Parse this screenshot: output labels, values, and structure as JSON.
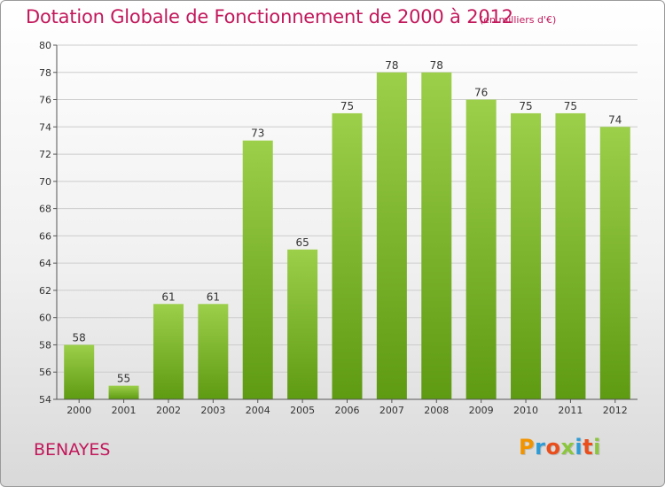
{
  "header": {
    "title": "Dotation Globale de Fonctionnement de 2000 à 2012",
    "unit": "(en milliers d'€)"
  },
  "footer": {
    "city": "BENAYES",
    "logo": {
      "text": "Proxiti",
      "colors": [
        "#f29400",
        "#2e9bd6",
        "#e94e1b",
        "#8cc63f",
        "#2e9bd6",
        "#e94e1b",
        "#8cc63f"
      ]
    }
  },
  "colors": {
    "title": "#c2185b",
    "bar_light": "#9ccf4a",
    "bar_dark": "#5e9a12",
    "grid": "#cccccc"
  },
  "chart_data": {
    "type": "bar",
    "title": "Dotation Globale de Fonctionnement de 2000 à 2012",
    "subtitle": "(en milliers d'€)",
    "categories": [
      "2000",
      "2001",
      "2002",
      "2003",
      "2004",
      "2005",
      "2006",
      "2007",
      "2008",
      "2009",
      "2010",
      "2011",
      "2012"
    ],
    "values": [
      58,
      55,
      61,
      61,
      73,
      65,
      75,
      78,
      78,
      76,
      75,
      75,
      74
    ],
    "ylim": [
      54,
      80
    ],
    "yticks": [
      54,
      56,
      58,
      60,
      62,
      64,
      66,
      68,
      70,
      72,
      74,
      76,
      78,
      80
    ],
    "xlabel": "",
    "ylabel": "",
    "grid": true,
    "data_labels": true
  }
}
